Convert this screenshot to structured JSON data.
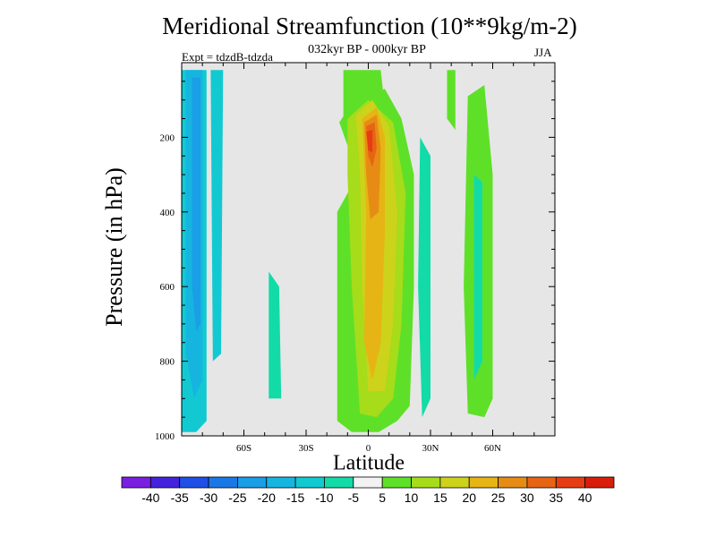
{
  "title": "Meridional Streamfunction (10**9kg/m-2)",
  "subtitle": "032kyr BP - 000kyr BP",
  "expt_label": "Expt = tdzdB-tdzda",
  "season": "JJA",
  "chart_data": {
    "type": "heatmap",
    "title": "Meridional Streamfunction (10**9kg/m-2)",
    "subtitle": "032kyr BP - 000kyr BP",
    "xlabel": "Latitude",
    "ylabel": "Pressure (in hPa)",
    "xlim": [
      -90,
      90
    ],
    "ylim": [
      1000,
      0
    ],
    "xticks": [
      {
        "value": -60,
        "label": "60S"
      },
      {
        "value": -30,
        "label": "30S"
      },
      {
        "value": 0,
        "label": "0"
      },
      {
        "value": 30,
        "label": "30N"
      },
      {
        "value": 60,
        "label": "60N"
      }
    ],
    "yticks": [
      {
        "value": 200,
        "label": "200"
      },
      {
        "value": 400,
        "label": "400"
      },
      {
        "value": 600,
        "label": "600"
      },
      {
        "value": 800,
        "label": "800"
      },
      {
        "value": 1000,
        "label": "1000"
      }
    ],
    "missing_color": "#e6e6e6",
    "colorbar": {
      "labels": [
        "-40",
        "-35",
        "-30",
        "-25",
        "-20",
        "-15",
        "-10",
        "-5",
        "5",
        "10",
        "15",
        "20",
        "25",
        "30",
        "35",
        "40"
      ],
      "colors": [
        "#7a1ee0",
        "#4422dd",
        "#1f4fe6",
        "#1a78e6",
        "#1a9ee6",
        "#15b5e0",
        "#12c9d2",
        "#12dba8",
        "#f2f2f2",
        "#5fe028",
        "#a6dc1a",
        "#cdd21a",
        "#e6b414",
        "#e68c14",
        "#e66414",
        "#e63c14",
        "#d81e0a"
      ]
    },
    "regions": [
      {
        "name": "neg-band-60S",
        "level": "-10",
        "color": "#12c9d2",
        "points": [
          [
            -90,
            20
          ],
          [
            -78,
            20
          ],
          [
            -78,
            960
          ],
          [
            -83,
            990
          ],
          [
            -90,
            990
          ]
        ]
      },
      {
        "name": "neg-band-60S-inner",
        "level": "-15",
        "color": "#15b5e0",
        "points": [
          [
            -88,
            20
          ],
          [
            -80,
            20
          ],
          [
            -80,
            850
          ],
          [
            -84,
            900
          ],
          [
            -88,
            780
          ]
        ]
      },
      {
        "name": "neg-core-60S",
        "level": "-20",
        "color": "#1a9ee6",
        "points": [
          [
            -85,
            40
          ],
          [
            -81,
            40
          ],
          [
            -81,
            700
          ],
          [
            -83,
            720
          ],
          [
            -85,
            600
          ]
        ]
      },
      {
        "name": "neg-strip-70S",
        "level": "-10",
        "color": "#12c9d2",
        "points": [
          [
            -76,
            20
          ],
          [
            -70,
            20
          ],
          [
            -71,
            780
          ],
          [
            -75,
            800
          ]
        ]
      },
      {
        "name": "neg-lobe-40S",
        "level": "-5",
        "color": "#12dba8",
        "points": [
          [
            -48,
            560
          ],
          [
            -43,
            600
          ],
          [
            -42,
            900
          ],
          [
            -48,
            900
          ]
        ]
      },
      {
        "name": "pos-main-lower",
        "level": "5",
        "color": "#5fe028",
        "points": [
          [
            -14,
            160
          ],
          [
            -8,
            110
          ],
          [
            8,
            70
          ],
          [
            16,
            150
          ],
          [
            22,
            300
          ],
          [
            22,
            600
          ],
          [
            20,
            920
          ],
          [
            14,
            960
          ],
          [
            5,
            990
          ],
          [
            -8,
            990
          ],
          [
            -15,
            960
          ],
          [
            -15,
            400
          ],
          [
            -5,
            300
          ]
        ]
      },
      {
        "name": "pos-upper-left",
        "level": "5",
        "color": "#5fe028",
        "points": [
          [
            -12,
            20
          ],
          [
            6,
            20
          ],
          [
            8,
            120
          ],
          [
            -6,
            180
          ],
          [
            -12,
            170
          ]
        ]
      },
      {
        "name": "pos-10-lower",
        "level": "10",
        "color": "#a6dc1a",
        "points": [
          [
            -10,
            150
          ],
          [
            0,
            100
          ],
          [
            12,
            160
          ],
          [
            18,
            350
          ],
          [
            16,
            700
          ],
          [
            12,
            900
          ],
          [
            4,
            950
          ],
          [
            -4,
            940
          ],
          [
            -8,
            600
          ],
          [
            -10,
            300
          ]
        ]
      },
      {
        "name": "pos-15",
        "level": "15",
        "color": "#cdd21a",
        "points": [
          [
            -6,
            140
          ],
          [
            2,
            100
          ],
          [
            10,
            170
          ],
          [
            14,
            400
          ],
          [
            12,
            700
          ],
          [
            8,
            880
          ],
          [
            0,
            880
          ],
          [
            -3,
            600
          ],
          [
            -4,
            300
          ]
        ]
      },
      {
        "name": "pos-20",
        "level": "20",
        "color": "#e6b414",
        "points": [
          [
            -3,
            150
          ],
          [
            4,
            120
          ],
          [
            8,
            200
          ],
          [
            8,
            450
          ],
          [
            6,
            750
          ],
          [
            2,
            850
          ],
          [
            -2,
            750
          ],
          [
            -1,
            400
          ]
        ]
      },
      {
        "name": "pos-25",
        "level": "25",
        "color": "#e68c14",
        "points": [
          [
            -2,
            160
          ],
          [
            4,
            140
          ],
          [
            6,
            230
          ],
          [
            5,
            400
          ],
          [
            1,
            420
          ],
          [
            -1,
            300
          ]
        ]
      },
      {
        "name": "pos-30",
        "level": "30",
        "color": "#e66414",
        "points": [
          [
            -1,
            170
          ],
          [
            3,
            160
          ],
          [
            4,
            230
          ],
          [
            2,
            280
          ],
          [
            0,
            250
          ]
        ]
      },
      {
        "name": "pos-35",
        "level": "35",
        "color": "#e63c14",
        "points": [
          [
            -1,
            185
          ],
          [
            2,
            180
          ],
          [
            2,
            240
          ],
          [
            0,
            235
          ]
        ]
      },
      {
        "name": "neg-band-25N",
        "level": "-5",
        "color": "#12dba8",
        "points": [
          [
            25,
            200
          ],
          [
            30,
            250
          ],
          [
            30,
            900
          ],
          [
            26,
            950
          ],
          [
            24,
            600
          ]
        ]
      },
      {
        "name": "pos-band-45N",
        "level": "5",
        "color": "#5fe028",
        "points": [
          [
            38,
            20
          ],
          [
            42,
            20
          ],
          [
            42,
            180
          ],
          [
            38,
            150
          ]
        ]
      },
      {
        "name": "pos-band-60N",
        "level": "5",
        "color": "#5fe028",
        "points": [
          [
            48,
            90
          ],
          [
            56,
            60
          ],
          [
            60,
            300
          ],
          [
            60,
            900
          ],
          [
            56,
            950
          ],
          [
            48,
            940
          ],
          [
            46,
            600
          ]
        ]
      },
      {
        "name": "neg-band-55N",
        "level": "-5",
        "color": "#12dba8",
        "points": [
          [
            51,
            300
          ],
          [
            55,
            320
          ],
          [
            55,
            800
          ],
          [
            51,
            850
          ]
        ]
      }
    ]
  }
}
